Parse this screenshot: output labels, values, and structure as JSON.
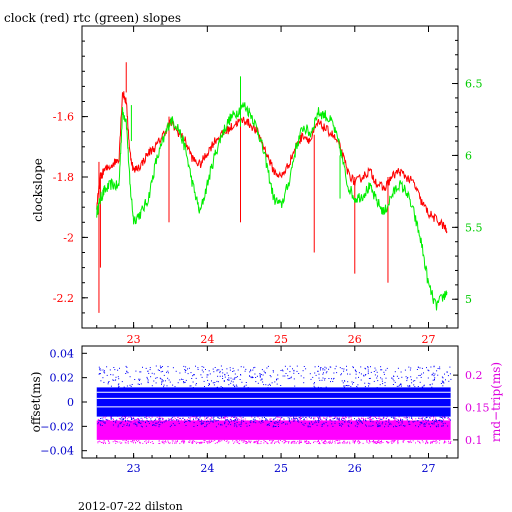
{
  "chart_data": [
    {
      "type": "line",
      "title": "clock (red) rtc (green) slopes",
      "ylabel": "clockslope",
      "x_ticks": [
        "23",
        "24",
        "25",
        "26",
        "27"
      ],
      "x_tick_values": [
        23,
        24,
        25,
        26,
        27
      ],
      "xlim": [
        22.3,
        27.4
      ],
      "ylim": [
        -2.3,
        -1.3
      ],
      "y_ticks": [
        "-1.6",
        "-1.8",
        "-2",
        "-2.2"
      ],
      "y_tick_values": [
        -1.6,
        -1.8,
        -2.0,
        -2.2
      ],
      "y2lim": [
        4.8,
        6.9
      ],
      "y2_ticks": [
        "6.5",
        "6",
        "5.5",
        "5"
      ],
      "y2_tick_values": [
        6.5,
        6.0,
        5.5,
        5.0
      ],
      "colors": {
        "clock": "#ff0000",
        "rtc": "#00ee00",
        "left_axis": "#ff0000",
        "right_axis": "#00cc00",
        "frame": "#000000"
      },
      "series": [
        {
          "axis": "left",
          "x": [
            22.5,
            22.55,
            22.6,
            22.7,
            22.8,
            22.85,
            22.9,
            22.95,
            23.0,
            23.1,
            23.2,
            23.3,
            23.4,
            23.5,
            23.6,
            23.7,
            23.8,
            23.9,
            24.0,
            24.1,
            24.2,
            24.3,
            24.4,
            24.5,
            24.6,
            24.7,
            24.8,
            24.9,
            25.0,
            25.1,
            25.2,
            25.3,
            25.4,
            25.5,
            25.6,
            25.7,
            25.8,
            25.9,
            26.0,
            26.1,
            26.2,
            26.3,
            26.4,
            26.5,
            26.6,
            26.7,
            26.8,
            26.9,
            27.0,
            27.1,
            27.2,
            27.25
          ],
          "y": [
            -1.9,
            -1.8,
            -1.78,
            -1.76,
            -1.74,
            -1.52,
            -1.55,
            -1.72,
            -1.78,
            -1.76,
            -1.72,
            -1.7,
            -1.66,
            -1.62,
            -1.65,
            -1.68,
            -1.74,
            -1.76,
            -1.72,
            -1.68,
            -1.66,
            -1.64,
            -1.62,
            -1.61,
            -1.63,
            -1.66,
            -1.72,
            -1.78,
            -1.8,
            -1.76,
            -1.7,
            -1.66,
            -1.68,
            -1.62,
            -1.64,
            -1.66,
            -1.7,
            -1.78,
            -1.82,
            -1.8,
            -1.78,
            -1.82,
            -1.84,
            -1.8,
            -1.78,
            -1.8,
            -1.82,
            -1.88,
            -1.92,
            -1.94,
            -1.96,
            -1.98
          ]
        },
        {
          "axis": "right",
          "x": [
            22.5,
            22.55,
            22.6,
            22.7,
            22.8,
            22.85,
            22.9,
            22.95,
            23.0,
            23.1,
            23.2,
            23.3,
            23.4,
            23.5,
            23.6,
            23.7,
            23.8,
            23.9,
            24.0,
            24.1,
            24.2,
            24.3,
            24.4,
            24.5,
            24.6,
            24.7,
            24.8,
            24.9,
            25.0,
            25.1,
            25.2,
            25.3,
            25.4,
            25.5,
            25.6,
            25.7,
            25.8,
            25.9,
            26.0,
            26.1,
            26.2,
            26.3,
            26.4,
            26.5,
            26.6,
            26.7,
            26.8,
            26.9,
            27.0,
            27.1,
            27.2,
            27.25
          ],
          "y": [
            5.6,
            5.7,
            5.75,
            5.8,
            5.78,
            6.3,
            6.25,
            5.8,
            5.55,
            5.6,
            5.7,
            5.95,
            6.1,
            6.25,
            6.2,
            6.05,
            5.8,
            5.6,
            5.8,
            6.0,
            6.15,
            6.25,
            6.3,
            6.35,
            6.28,
            6.15,
            5.95,
            5.7,
            5.65,
            5.8,
            6.05,
            6.2,
            6.15,
            6.3,
            6.28,
            6.22,
            6.05,
            5.8,
            5.7,
            5.72,
            5.78,
            5.68,
            5.6,
            5.72,
            5.8,
            5.75,
            5.6,
            5.4,
            5.1,
            4.95,
            5.02,
            5.05
          ]
        }
      ]
    },
    {
      "type": "scatter",
      "ylabel": "offset(ms)",
      "y2label": "rnd−trip(ms)",
      "x_ticks": [
        "23",
        "24",
        "25",
        "26",
        "27"
      ],
      "x_tick_values": [
        23,
        24,
        25,
        26,
        27
      ],
      "xlim": [
        22.3,
        27.4
      ],
      "ylim": [
        -0.046,
        0.046
      ],
      "y_ticks": [
        "0.04",
        "0.02",
        "0",
        "−0.02",
        "−0.04"
      ],
      "y_tick_values": [
        0.04,
        0.02,
        0.0,
        -0.02,
        -0.04
      ],
      "y2lim": [
        0.072,
        0.245
      ],
      "y2_ticks": [
        "0.2",
        "0.15",
        "0.1"
      ],
      "y2_tick_values": [
        0.2,
        0.15,
        0.1
      ],
      "colors": {
        "offset": "#0000ff",
        "rnd_trip": "#ff00ff",
        "left_axis": "#0000cc",
        "right_axis": "#dd00dd"
      },
      "series": [
        {
          "axis": "left",
          "x_range": [
            22.5,
            27.3
          ],
          "y_center": 0.0,
          "y_band": [
            -0.012,
            0.012
          ],
          "y_outliers": [
            -0.02,
            0.03
          ]
        },
        {
          "axis": "right",
          "x_range": [
            22.5,
            27.3
          ],
          "y_center": 0.115,
          "y_band": [
            0.1,
            0.13
          ],
          "y_outliers": [
            0.095,
            0.14
          ]
        }
      ]
    }
  ],
  "footer": "2012-07-22 dilston"
}
